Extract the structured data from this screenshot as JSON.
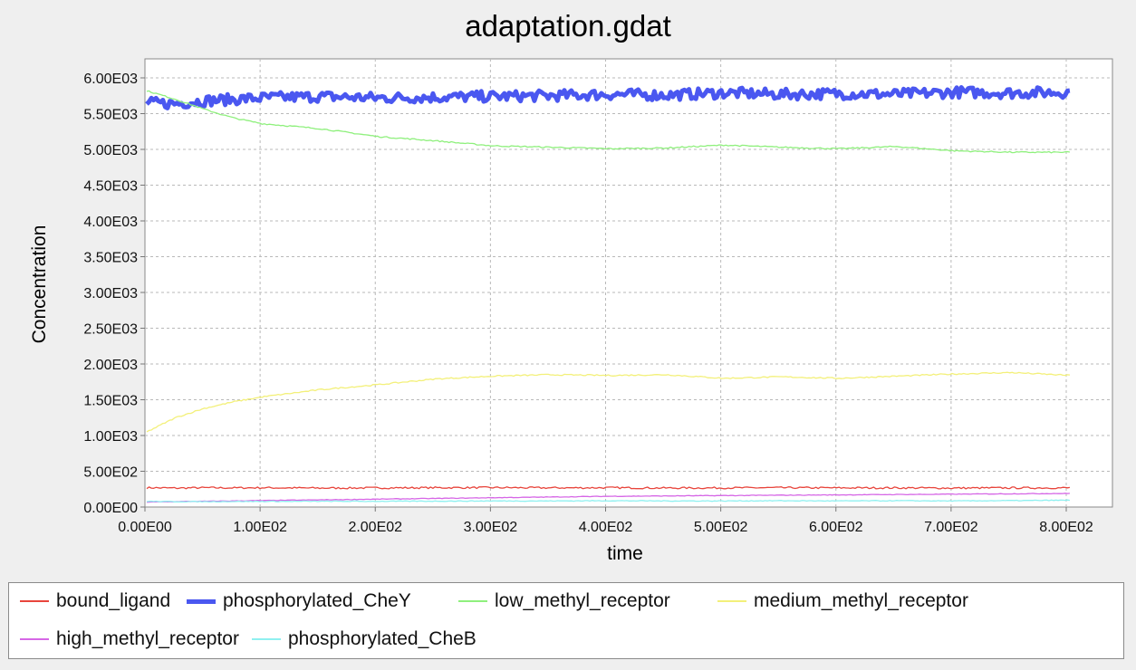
{
  "chart_data": {
    "type": "line",
    "title": "adaptation.gdat",
    "xlabel": "time",
    "ylabel": "Concentration",
    "xlim": [
      0,
      800
    ],
    "ylim": [
      0,
      6000
    ],
    "x_ticks": [
      0,
      100,
      200,
      300,
      400,
      500,
      600,
      700,
      800
    ],
    "x_tick_labels": [
      "0.00E00",
      "1.00E02",
      "2.00E02",
      "3.00E02",
      "4.00E02",
      "5.00E02",
      "6.00E02",
      "7.00E02",
      "8.00E02"
    ],
    "y_ticks": [
      0,
      500,
      1000,
      1500,
      2000,
      2500,
      3000,
      3500,
      4000,
      4500,
      5000,
      5500,
      6000
    ],
    "y_tick_labels": [
      "0.00E00",
      "5.00E02",
      "1.00E03",
      "1.50E03",
      "2.00E03",
      "2.50E03",
      "3.00E03",
      "3.50E03",
      "4.00E03",
      "4.50E03",
      "5.00E03",
      "5.50E03",
      "6.00E03"
    ],
    "grid": true,
    "legend_position": "bottom",
    "x": [
      0,
      25,
      50,
      75,
      100,
      150,
      200,
      250,
      300,
      350,
      400,
      450,
      500,
      550,
      600,
      650,
      700,
      750,
      800
    ],
    "series": [
      {
        "name": "bound_ligand",
        "color": "#e8453c",
        "values": [
          270,
          265,
          270,
          268,
          270,
          265,
          268,
          270,
          272,
          268,
          270,
          266,
          268,
          270,
          268,
          268,
          265,
          268,
          268
        ]
      },
      {
        "name": "phosphorylated_CheY",
        "color": "#4a57f0",
        "values": [
          5650,
          5640,
          5680,
          5700,
          5720,
          5740,
          5720,
          5730,
          5740,
          5750,
          5770,
          5760,
          5790,
          5770,
          5780,
          5770,
          5800,
          5790,
          5800
        ]
      },
      {
        "name": "low_methyl_receptor",
        "color": "#8ff07d",
        "values": [
          5820,
          5700,
          5560,
          5440,
          5360,
          5290,
          5180,
          5120,
          5050,
          5030,
          5010,
          5020,
          5060,
          5030,
          5010,
          5040,
          4980,
          4960,
          4960
        ]
      },
      {
        "name": "medium_methyl_receptor",
        "color": "#f3f07a",
        "values": [
          1050,
          1250,
          1380,
          1470,
          1540,
          1640,
          1710,
          1790,
          1830,
          1850,
          1840,
          1850,
          1800,
          1820,
          1800,
          1830,
          1860,
          1880,
          1840
        ]
      },
      {
        "name": "high_methyl_receptor",
        "color": "#d667e6",
        "values": [
          70,
          75,
          80,
          85,
          90,
          100,
          110,
          120,
          130,
          140,
          150,
          155,
          160,
          165,
          170,
          175,
          180,
          185,
          190
        ]
      },
      {
        "name": "phosphorylated_CheB",
        "color": "#8ff0f0",
        "values": [
          80,
          75,
          75,
          78,
          78,
          80,
          80,
          82,
          85,
          85,
          88,
          85,
          85,
          88,
          85,
          88,
          85,
          90,
          95
        ]
      }
    ]
  }
}
